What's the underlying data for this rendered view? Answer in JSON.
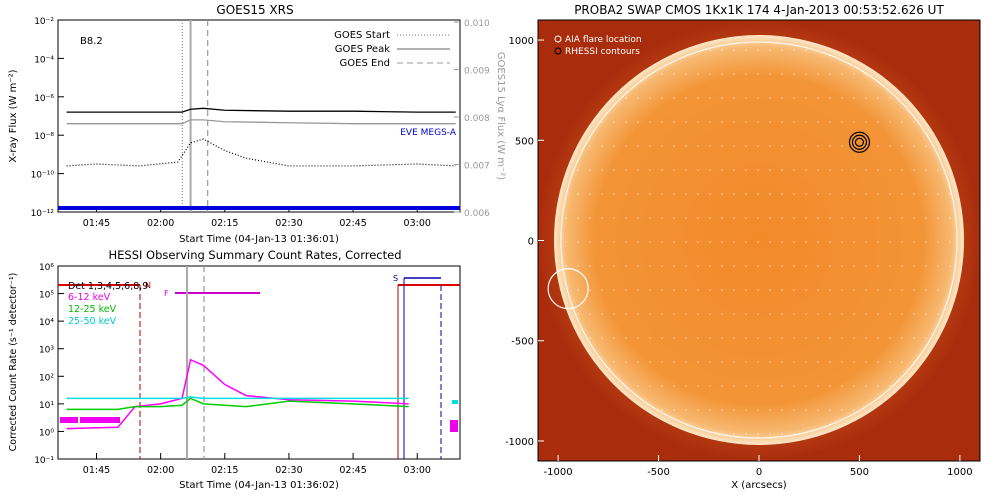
{
  "chart_data": [
    {
      "type": "line",
      "title": "GOES15 XRS",
      "annotation": "B8.2",
      "xlabel": "Start Time (04-Jan-13 01:36:01)",
      "ylabel_left": "X-ray Flux (W m⁻²)",
      "ylabel_right": "GOES15 Lyα Flux (W m⁻²)",
      "x_ticks": [
        "01:45",
        "02:00",
        "02:15",
        "02:30",
        "02:45",
        "03:00"
      ],
      "y_ticks_left": [
        "10⁻²",
        "10⁻⁴",
        "10⁻⁶",
        "10⁻⁸",
        "10⁻¹⁰",
        "10⁻¹²"
      ],
      "y_ticks_right": [
        "0.010",
        "0.009",
        "0.008",
        "0.007",
        "0.006"
      ],
      "legend": [
        "GOES Start",
        "GOES Peak",
        "GOES End"
      ],
      "legend_position": "top-right",
      "side_label": "EVE MEGS-A",
      "event_lines": {
        "start": "02:06",
        "peak": "02:07",
        "end": "02:11"
      },
      "series": [
        {
          "name": "",
          "color": "#000000",
          "x": [
            "01:38",
            "01:50",
            "02:00",
            "02:05",
            "02:07",
            "02:10",
            "02:15",
            "02:30",
            "02:45",
            "03:00",
            "03:09"
          ],
          "log10": [
            -6.8,
            -6.8,
            -6.8,
            -6.8,
            -6.65,
            -6.6,
            -6.7,
            -6.75,
            -6.75,
            -6.8,
            -6.8
          ]
        },
        {
          "name": "",
          "color": "#999999",
          "x": [
            "01:38",
            "01:50",
            "02:00",
            "02:05",
            "02:07",
            "02:10",
            "02:15",
            "02:30",
            "02:45",
            "03:00",
            "03:09"
          ],
          "log10": [
            -7.4,
            -7.4,
            -7.4,
            -7.4,
            -7.2,
            -7.2,
            -7.3,
            -7.35,
            -7.4,
            -7.4,
            -7.4
          ]
        },
        {
          "name": "",
          "color": "#000000",
          "style": "dotted",
          "x": [
            "01:38",
            "01:45",
            "01:55",
            "02:04",
            "02:07",
            "02:10",
            "02:15",
            "02:20",
            "02:30",
            "02:45",
            "03:00",
            "03:09"
          ],
          "log10": [
            -9.6,
            -9.5,
            -9.6,
            -9.4,
            -8.4,
            -8.2,
            -8.8,
            -9.2,
            -9.6,
            -9.6,
            -9.5,
            -9.6
          ]
        }
      ]
    },
    {
      "type": "line",
      "title": "HESSI Observing Summary Count Rates, Corrected",
      "xlabel": "Start Time (04-Jan-13 01:36:02)",
      "ylabel": "Corrected Count Rate (s⁻¹ detector⁻¹)",
      "x_ticks": [
        "01:45",
        "02:00",
        "02:15",
        "02:30",
        "02:45",
        "03:00"
      ],
      "y_ticks": [
        "10⁻¹",
        "10⁰",
        "10¹",
        "10²",
        "10³",
        "10⁴",
        "10⁵",
        "10⁶"
      ],
      "legend": [
        "Det 1,3,4,5,6,8,9",
        "6-12 keV",
        "12-25 keV",
        "25-50 keV"
      ],
      "legend_position": "top-left",
      "flags": {
        "N": "N",
        "F": "F",
        "S": "S"
      },
      "series": [
        {
          "name": "6-12 keV",
          "color": "#ff00ff",
          "x": [
            "01:38",
            "01:50",
            "01:54",
            "02:00",
            "02:05",
            "02:07",
            "02:10",
            "02:15",
            "02:20",
            "02:30",
            "02:45",
            "02:58"
          ],
          "log10": [
            0.1,
            0.15,
            0.9,
            1.0,
            1.2,
            2.6,
            2.4,
            1.7,
            1.3,
            1.15,
            1.1,
            1.0
          ]
        },
        {
          "name": "12-25 keV",
          "color": "#00cc00",
          "x": [
            "01:38",
            "01:50",
            "01:54",
            "02:00",
            "02:05",
            "02:07",
            "02:10",
            "02:20",
            "02:30",
            "02:45",
            "02:58"
          ],
          "log10": [
            0.8,
            0.8,
            0.9,
            0.9,
            0.95,
            1.2,
            1.0,
            0.9,
            1.1,
            1.0,
            0.9
          ]
        },
        {
          "name": "25-50 keV",
          "color": "#00dddd",
          "x": [
            "01:38",
            "01:50",
            "01:54",
            "02:00",
            "02:05",
            "02:07",
            "02:10",
            "02:20",
            "02:30",
            "02:45",
            "02:58"
          ],
          "log10": [
            1.2,
            1.2,
            1.2,
            1.2,
            1.2,
            1.25,
            1.2,
            1.2,
            1.2,
            1.2,
            1.2
          ]
        }
      ]
    },
    {
      "type": "scatter",
      "title": "PROBA2 SWAP CMOS 1Kx1K 174  4-Jan-2013 00:53:52.626 UT",
      "xlabel": "X (arcsecs)",
      "ylabel": "",
      "x_ticks": [
        "-1000",
        "-500",
        "0",
        "500",
        "1000"
      ],
      "y_ticks": [
        "1000",
        "500",
        "0",
        "-500",
        "-1000"
      ],
      "xlim": [
        -1100,
        1100
      ],
      "ylim": [
        -1100,
        1100
      ],
      "legend": [
        "AIA flare location",
        "RHESSI contours"
      ],
      "legend_position": "top-left",
      "points": [
        {
          "name": "AIA flare location",
          "x": -950,
          "y": -240
        },
        {
          "name": "RHESSI contours",
          "x": 500,
          "y": 490
        }
      ]
    }
  ]
}
